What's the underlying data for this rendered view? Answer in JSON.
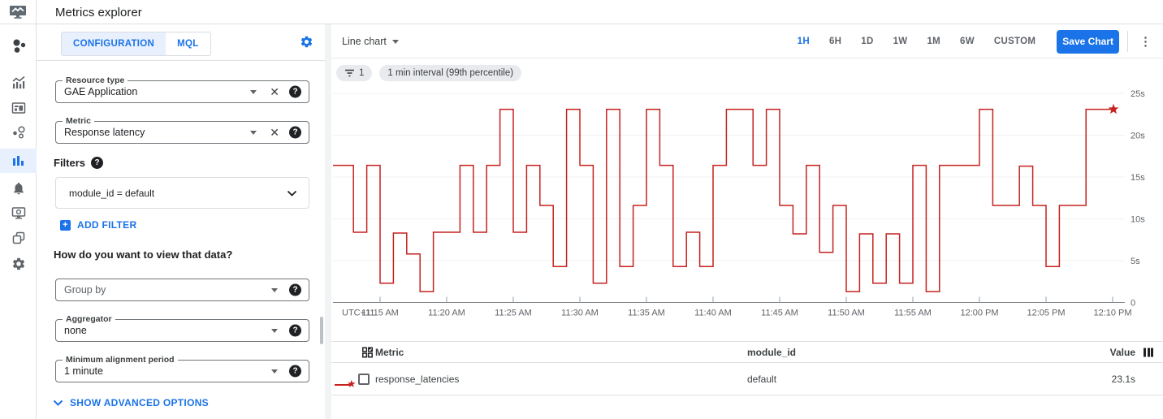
{
  "header": {
    "title": "Metrics explorer",
    "logo_icon": "monitoring-logo-icon"
  },
  "sidebar": {
    "icons": [
      "overview-icon",
      "metrics-trend-icon",
      "dashboards-icon",
      "services-icon",
      "metrics-explorer-icon",
      "alerting-bell-icon",
      "uptime-monitor-icon",
      "groups-icon",
      "settings-gear-icon"
    ],
    "active": "metrics-explorer-icon"
  },
  "config": {
    "tabs": [
      {
        "label": "CONFIGURATION",
        "active": true
      },
      {
        "label": "MQL",
        "active": false
      }
    ],
    "settings_icon": "gear-icon",
    "resource_type": {
      "label": "Resource type",
      "value": "GAE Application"
    },
    "metric": {
      "label": "Metric",
      "value": "Response latency"
    },
    "filters": {
      "label": "Filters",
      "value": "module_id = default",
      "add_label": "ADD FILTER"
    },
    "view_heading": "How do you want to view that data?",
    "group_by": {
      "placeholder": "Group by"
    },
    "aggregator": {
      "label": "Aggregator",
      "value": "none"
    },
    "alignment": {
      "label": "Minimum alignment period",
      "value": "1 minute"
    },
    "advanced_label": "SHOW ADVANCED OPTIONS"
  },
  "toolbar": {
    "chart_type": "Line chart",
    "ranges": [
      "1H",
      "6H",
      "1D",
      "1W",
      "1M",
      "6W",
      "CUSTOM"
    ],
    "active_range": "1H",
    "save_label": "Save Chart",
    "chips": [
      {
        "icon": "filter-icon",
        "label": "1"
      },
      {
        "label": "1 min interval (99th percentile)"
      }
    ]
  },
  "chart_data": {
    "type": "line",
    "style": "step",
    "line_color": "#c5221f",
    "grid": true,
    "end_marker": "star",
    "ylim": [
      0,
      25
    ],
    "y_ticks": [
      {
        "v": 25,
        "label": "25s"
      },
      {
        "v": 20,
        "label": "20s"
      },
      {
        "v": 15,
        "label": "15s"
      },
      {
        "v": 10,
        "label": "10s"
      },
      {
        "v": 5,
        "label": "5s"
      },
      {
        "v": 0,
        "label": "0"
      }
    ],
    "x_axis_prefix": "UTC+11",
    "x_ticks": [
      {
        "min": 3,
        "label": "11:15 AM"
      },
      {
        "min": 8,
        "label": "11:20 AM"
      },
      {
        "min": 13,
        "label": "11:25 AM"
      },
      {
        "min": 18,
        "label": "11:30 AM"
      },
      {
        "min": 23,
        "label": "11:35 AM"
      },
      {
        "min": 28,
        "label": "11:40 AM"
      },
      {
        "min": 33,
        "label": "11:45 AM"
      },
      {
        "min": 38,
        "label": "11:50 AM"
      },
      {
        "min": 43,
        "label": "11:55 AM"
      },
      {
        "min": 48,
        "label": "12:00 PM"
      },
      {
        "min": 53,
        "label": "12:05 PM"
      },
      {
        "min": 58,
        "label": "12:10 PM"
      }
    ],
    "series": [
      {
        "name": "response_latencies",
        "unit": "s",
        "start": "11:12 AM",
        "interval_minutes": 1,
        "values": [
          16.4,
          8.4,
          16.4,
          2.3,
          8.3,
          5.8,
          1.3,
          8.4,
          8.4,
          16.4,
          8.4,
          16.4,
          23.1,
          8.4,
          16.4,
          11.6,
          4.3,
          23.1,
          16.4,
          2.3,
          23.1,
          4.3,
          11.6,
          23.1,
          16.4,
          4.3,
          8.4,
          4.3,
          16.4,
          23.1,
          23.1,
          16.4,
          23.1,
          11.6,
          8.2,
          16.4,
          6.0,
          11.6,
          1.3,
          8.2,
          2.3,
          8.2,
          2.3,
          16.4,
          1.3,
          16.4,
          16.4,
          16.4,
          23.1,
          11.6,
          11.6,
          16.3,
          11.6,
          4.3,
          11.6,
          11.6,
          23.1,
          23.1,
          23.1
        ]
      }
    ]
  },
  "table": {
    "columns": [
      {
        "label": "Metric"
      },
      {
        "label": "module_id"
      },
      {
        "label": "Value"
      }
    ],
    "rows": [
      {
        "metric": "response_latencies",
        "module_id": "default",
        "value": "23.1s",
        "checked": false,
        "swatch": "red-line-star"
      }
    ]
  }
}
